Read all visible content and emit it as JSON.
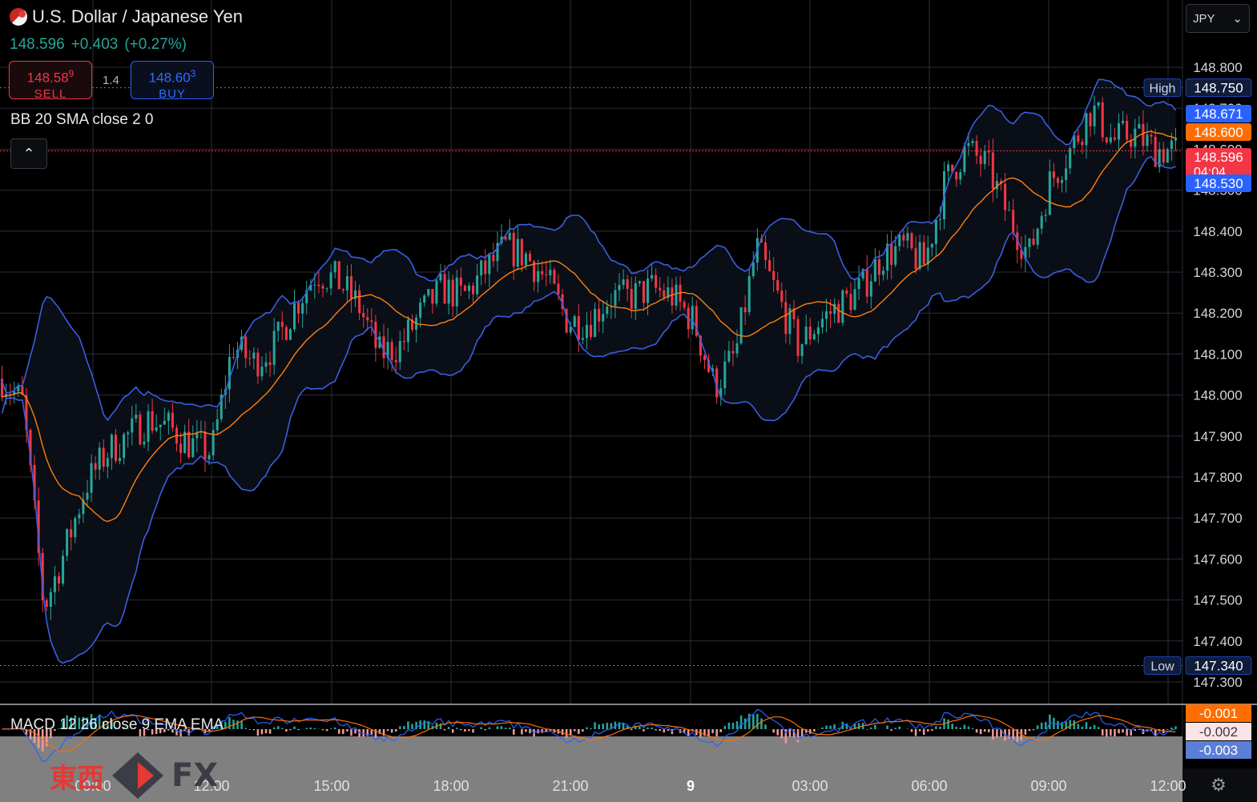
{
  "header": {
    "symbol_title": "U.S. Dollar / Japanese Yen",
    "last_price": "148.596",
    "change": "+0.403",
    "change_pct": "(+0.27%)",
    "sell_price_main": "148.58",
    "sell_price_pip": "9",
    "sell_label": "SELL",
    "spread": "1.4",
    "buy_price_main": "148.60",
    "buy_price_pip": "3",
    "buy_label": "BUY",
    "currency_selector": "JPY",
    "collapse_icon": "chevron-up-icon",
    "currency_icon": "chevron-down-icon",
    "flag_icon": "us-japan-flag-icon"
  },
  "indicators": {
    "bb_label": "BB 20 SMA close 2 0",
    "macd_label": "MACD 12 26 close 9 EMA EMA"
  },
  "price_axis": {
    "ticks": [
      "148.800",
      "148.700",
      "148.600",
      "148.500",
      "148.400",
      "148.300",
      "148.200",
      "148.100",
      "148.000",
      "147.900",
      "147.800",
      "147.700",
      "147.600",
      "147.500",
      "147.400",
      "147.300"
    ],
    "labels": [
      {
        "text": "148.750",
        "value": 148.75,
        "color": "#0f1c3a",
        "tag": "High"
      },
      {
        "text": "148.671",
        "value": 148.671,
        "color": "#2962ff",
        "tag": ""
      },
      {
        "text": "148.600",
        "value": 148.6,
        "color": "#ff6d00",
        "tag": ""
      },
      {
        "text": "148.596",
        "value": 148.596,
        "color": "#f23645",
        "tag": "",
        "sub": "04:04"
      },
      {
        "text": "148.530",
        "value": 148.53,
        "color": "#2962ff",
        "tag": ""
      },
      {
        "text": "147.340",
        "value": 147.34,
        "color": "#0f1c3a",
        "tag": "Low"
      }
    ]
  },
  "macd_axis": {
    "labels": [
      {
        "text": "-0.001",
        "color": "#ff6d00"
      },
      {
        "text": "-0.002",
        "color": "#fbe4e6"
      },
      {
        "text": "-0.003",
        "color": "#5b7fd6"
      }
    ]
  },
  "time_axis": [
    "09:00",
    "12:00",
    "15:00",
    "18:00",
    "21:00",
    "9",
    "03:00",
    "06:00",
    "09:00",
    "12:00"
  ],
  "watermark": {
    "kanji": "東西",
    "fx": "FX"
  },
  "colors": {
    "up": "#26a69a",
    "down": "#f23645",
    "bb_band": "#3a5ee0",
    "bb_basis": "#ff7f0e",
    "grid": "#2a2e39",
    "fill": "#0b0f18"
  },
  "chart_data": {
    "type": "candlestick",
    "title": "U.S. Dollar / Japanese Yen",
    "ylim": [
      147.26,
      148.88
    ],
    "x": [
      "09:00",
      "12:00",
      "15:00",
      "18:00",
      "21:00",
      "9",
      "03:00",
      "06:00",
      "09:00",
      "12:00"
    ],
    "close_path": [
      [
        "08:00",
        148.04
      ],
      [
        "08:30",
        147.98
      ],
      [
        "09:00",
        147.48
      ],
      [
        "09:30",
        147.62
      ],
      [
        "10:00",
        147.78
      ],
      [
        "10:30",
        147.86
      ],
      [
        "11:00",
        147.9
      ],
      [
        "11:30",
        147.94
      ],
      [
        "12:00",
        147.92
      ],
      [
        "12:30",
        147.88
      ],
      [
        "13:00",
        147.86
      ],
      [
        "13:30",
        148.12
      ],
      [
        "14:00",
        148.08
      ],
      [
        "14:30",
        148.12
      ],
      [
        "15:00",
        148.22
      ],
      [
        "15:30",
        148.3
      ],
      [
        "16:00",
        148.28
      ],
      [
        "16:30",
        148.22
      ],
      [
        "17:00",
        148.1
      ],
      [
        "17:30",
        148.12
      ],
      [
        "18:00",
        148.2
      ],
      [
        "18:30",
        148.26
      ],
      [
        "19:00",
        148.24
      ],
      [
        "19:30",
        148.3
      ],
      [
        "20:00",
        148.36
      ],
      [
        "20:30",
        148.34
      ],
      [
        "21:00",
        148.28
      ],
      [
        "21:30",
        148.18
      ],
      [
        "22:00",
        148.18
      ],
      [
        "22:30",
        148.24
      ],
      [
        "23:00",
        148.24
      ],
      [
        "23:30",
        148.26
      ],
      [
        "00:00",
        148.24
      ],
      [
        "00:30",
        148.18
      ],
      [
        "01:00",
        148.02
      ],
      [
        "01:30",
        148.1
      ],
      [
        "02:00",
        148.36
      ],
      [
        "02:30",
        148.24
      ],
      [
        "03:00",
        148.12
      ],
      [
        "03:30",
        148.18
      ],
      [
        "04:00",
        148.22
      ],
      [
        "04:30",
        148.26
      ],
      [
        "05:00",
        148.34
      ],
      [
        "05:30",
        148.36
      ],
      [
        "06:00",
        148.32
      ],
      [
        "06:30",
        148.52
      ],
      [
        "07:00",
        148.6
      ],
      [
        "07:30",
        148.56
      ],
      [
        "08:00",
        148.44
      ],
      [
        "08:30",
        148.34
      ],
      [
        "09:00",
        148.52
      ],
      [
        "09:30",
        148.6
      ],
      [
        "10:00",
        148.7
      ],
      [
        "10:30",
        148.62
      ],
      [
        "11:00",
        148.64
      ],
      [
        "11:30",
        148.6
      ],
      [
        "12:00",
        148.596
      ]
    ],
    "bollinger": {
      "period": 20,
      "mult": 2,
      "source": "close"
    },
    "high": 148.75,
    "low": 147.34,
    "current": 148.596
  }
}
